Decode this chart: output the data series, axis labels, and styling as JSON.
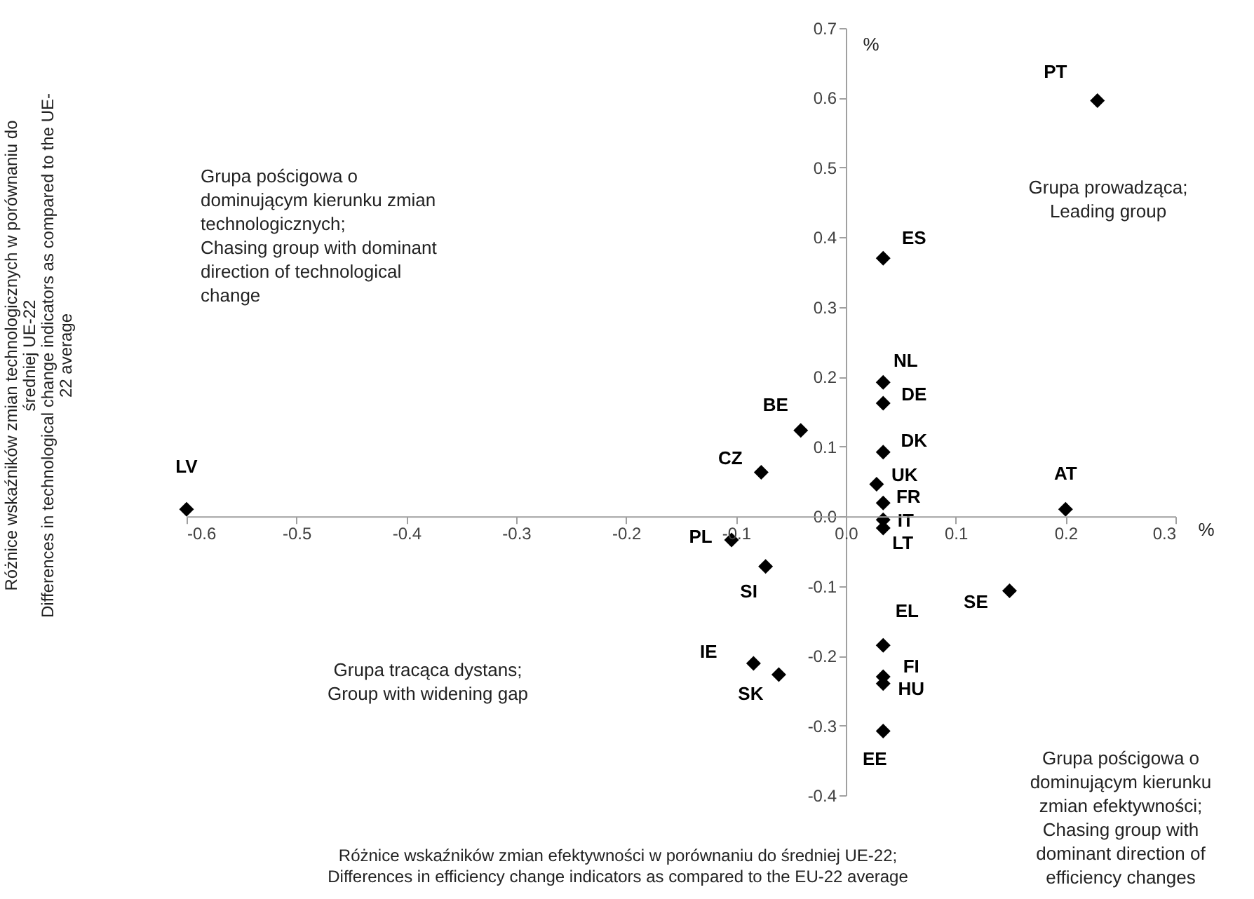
{
  "chart_data": {
    "type": "scatter",
    "xlabel": "Różnice wskaźników zmian efektywności w porównaniu  do średniej UE-22;\nDifferences  in efficiency change indicators as compared to the EU-22 average",
    "series": [
      {
        "color": "#000000",
        "x": [
          0.229,
          0.034,
          0.034,
          0.034,
          0.034,
          0.028,
          0.034,
          0.034,
          0.034,
          0.2,
          -0.041,
          -0.077,
          -0.104,
          -0.073,
          -0.6,
          0.149,
          0.034,
          0.034,
          0.034,
          0.034,
          -0.084,
          -0.061
        ],
        "values": [
          0.596,
          0.37,
          0.192,
          0.162,
          0.092,
          0.046,
          0.019,
          -0.005,
          -0.017,
          0.01,
          0.123,
          0.063,
          -0.034,
          -0.072,
          0.01,
          -0.107,
          -0.185,
          -0.23,
          -0.24,
          -0.308,
          -0.211,
          -0.227
        ],
        "value_labels": [
          "PT",
          "ES",
          "NL",
          "DE",
          "DK",
          "UK",
          "FR",
          "IT",
          "LT",
          "AT",
          "BE",
          "CZ",
          "PL",
          "SI",
          "LV",
          "SE",
          "EL",
          "FI",
          "HU",
          "EE",
          "IE",
          "SK"
        ]
      }
    ],
    "marker": "diamond",
    "grid": false,
    "xlim": [
      -0.6,
      0.3
    ],
    "xticks": [
      -0.6,
      -0.5,
      -0.4,
      -0.3,
      -0.2,
      -0.1,
      {
        "value": 0,
        "label": "0.0"
      },
      0.1,
      0.2,
      0.3
    ],
    "ylim": [
      -0.4,
      0.7
    ],
    "yticks": [
      -0.4,
      -0.3,
      -0.2,
      -0.1,
      {
        "value": 0,
        "label": "0.0"
      },
      0.1,
      0.2,
      0.3,
      0.4,
      0.5,
      0.6,
      0.7
    ],
    "annotations": [
      "Grupa pościgowa o\ndominującym kierunku zmian\ntechnologicznych;\nChasing group with dominant\ndirection of technological\nchange",
      "Grupa prowadząca;\nLeading group",
      "Grupa tracąca dystans;\nGroup with widening gap",
      "Grupa pościgowa o\ndominującym kierunku\nzmian efektywności;\nChasing group with\ndominant direction of\nefficiency changes",
      "%",
      "%",
      "Różnice wskaźników zmian technologicznych w porównaniu  do\nśredniej UE-22\nDifferences in technological change indicators as compared to the UE-\n22 average"
    ]
  }
}
